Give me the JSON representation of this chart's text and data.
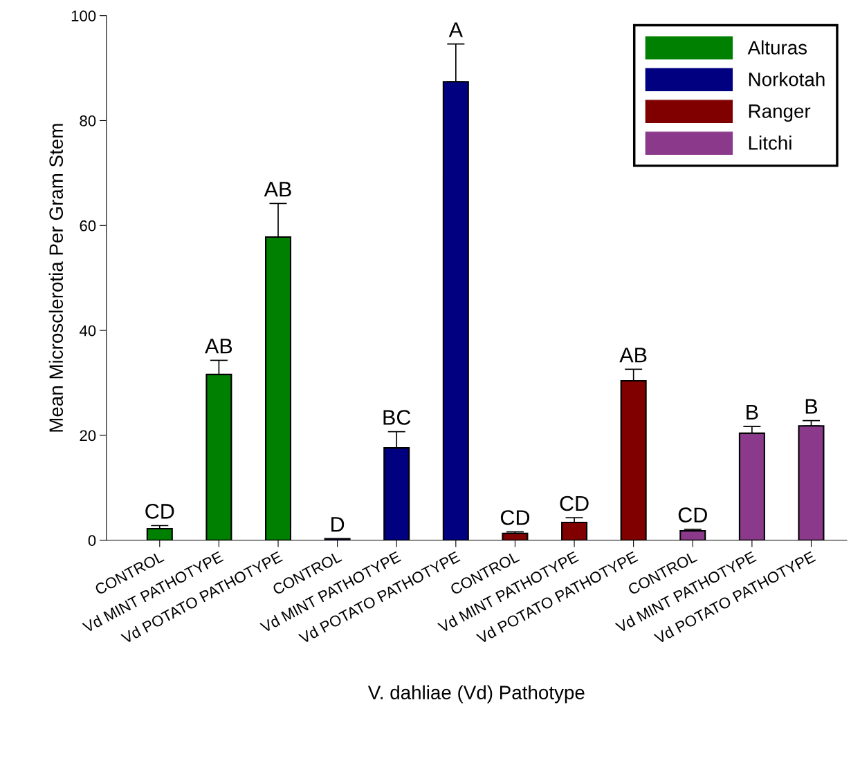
{
  "chart_data": {
    "type": "bar",
    "xlabel": "V. dahliae (Vd) Pathotype",
    "ylabel": "Mean Microsclerotia Per Gram Stem",
    "categories": [
      "CONTROL",
      "Vd MINT PATHOTYPE",
      "Vd POTATO PATHOTYPE",
      "CONTROL",
      "Vd MINT PATHOTYPE",
      "Vd POTATO PATHOTYPE",
      "CONTROL",
      "Vd MINT PATHOTYPE",
      "Vd POTATO PATHOTYPE",
      "CONTROL",
      "Vd MINT PATHOTYPE",
      "Vd POTATO PATHOTYPE"
    ],
    "series": [
      {
        "name": "Alturas",
        "color": "#008000",
        "values": [
          2.2,
          31.6,
          57.8,
          null,
          null,
          null,
          null,
          null,
          null,
          null,
          null,
          null
        ],
        "errors": [
          [
            2.2,
            2.8
          ],
          [
            31.6,
            34.3
          ],
          [
            57.8,
            64.2
          ],
          null,
          null,
          null,
          null,
          null,
          null,
          null,
          null,
          null
        ],
        "value_labels": [
          "CD",
          "AB",
          "AB",
          null,
          null,
          null,
          null,
          null,
          null,
          null,
          null,
          null
        ]
      },
      {
        "name": "Norkotah",
        "color": "#000080",
        "values": [
          null,
          null,
          null,
          0.3,
          17.6,
          87.4,
          null,
          null,
          null,
          null,
          null,
          null
        ],
        "errors": [
          null,
          null,
          null,
          null,
          [
            17.6,
            20.7
          ],
          [
            87.4,
            94.6
          ],
          null,
          null,
          null,
          null,
          null,
          null
        ],
        "value_labels": [
          null,
          null,
          null,
          "D",
          "BC",
          "A",
          null,
          null,
          null,
          null,
          null,
          null
        ]
      },
      {
        "name": "Ranger",
        "color": "#800000",
        "values": [
          null,
          null,
          null,
          null,
          null,
          null,
          1.3,
          3.4,
          30.4,
          null,
          null,
          null
        ],
        "errors": [
          null,
          null,
          null,
          null,
          null,
          null,
          [
            1.3,
            1.6
          ],
          [
            3.4,
            4.3
          ],
          [
            30.4,
            32.6
          ],
          null,
          null,
          null
        ],
        "value_labels": [
          null,
          null,
          null,
          null,
          null,
          null,
          "CD",
          "CD",
          "AB",
          null,
          null,
          null
        ]
      },
      {
        "name": "Litchi",
        "color": "#8b3a8b",
        "values": [
          null,
          null,
          null,
          null,
          null,
          null,
          null,
          null,
          null,
          1.8,
          20.4,
          21.8
        ],
        "errors": [
          null,
          null,
          null,
          null,
          null,
          null,
          null,
          null,
          null,
          [
            1.8,
            2.1
          ],
          [
            20.4,
            21.7
          ],
          [
            21.8,
            22.8
          ]
        ],
        "value_labels": [
          null,
          null,
          null,
          null,
          null,
          null,
          null,
          null,
          null,
          "CD",
          "B",
          "B"
        ]
      }
    ],
    "ylim": [
      0,
      100
    ],
    "yticks": [
      0,
      20,
      40,
      60,
      80,
      100
    ],
    "legend": "top right"
  }
}
